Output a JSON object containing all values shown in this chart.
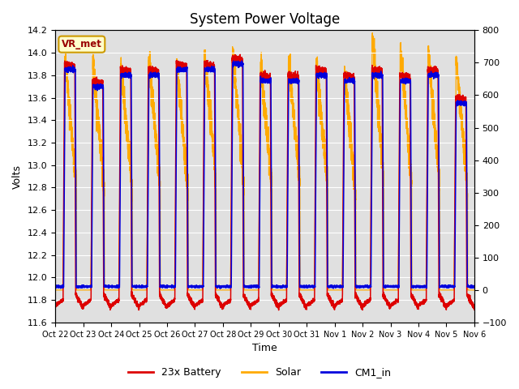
{
  "title": "System Power Voltage",
  "xlabel": "Time",
  "ylabel_left": "Volts",
  "ylim_left": [
    11.6,
    14.2
  ],
  "ylim_right": [
    -100,
    800
  ],
  "yticks_left": [
    11.6,
    11.8,
    12.0,
    12.2,
    12.4,
    12.6,
    12.8,
    13.0,
    13.2,
    13.4,
    13.6,
    13.8,
    14.0,
    14.2
  ],
  "yticks_right": [
    -100,
    0,
    100,
    200,
    300,
    400,
    500,
    600,
    700,
    800
  ],
  "xtick_labels": [
    "Oct 22",
    "Oct 23",
    "Oct 24",
    "Oct 25",
    "Oct 26",
    "Oct 27",
    "Oct 28",
    "Oct 29",
    "Oct 30",
    "Oct 31",
    "Nov 1",
    "Nov 2",
    "Nov 3",
    "Nov 4",
    "Nov 5",
    "Nov 6"
  ],
  "legend_entries": [
    "23x Battery",
    "Solar",
    "CM1_in"
  ],
  "legend_colors": [
    "#dd0000",
    "#ffaa00",
    "#0000dd"
  ],
  "annotation_text": "VR_met",
  "annotation_bg": "#ffffcc",
  "annotation_border": "#cc9900",
  "background_color": "#e0e0e0",
  "title_fontsize": 12,
  "axis_fontsize": 9,
  "tick_fontsize": 8,
  "num_days": 15
}
